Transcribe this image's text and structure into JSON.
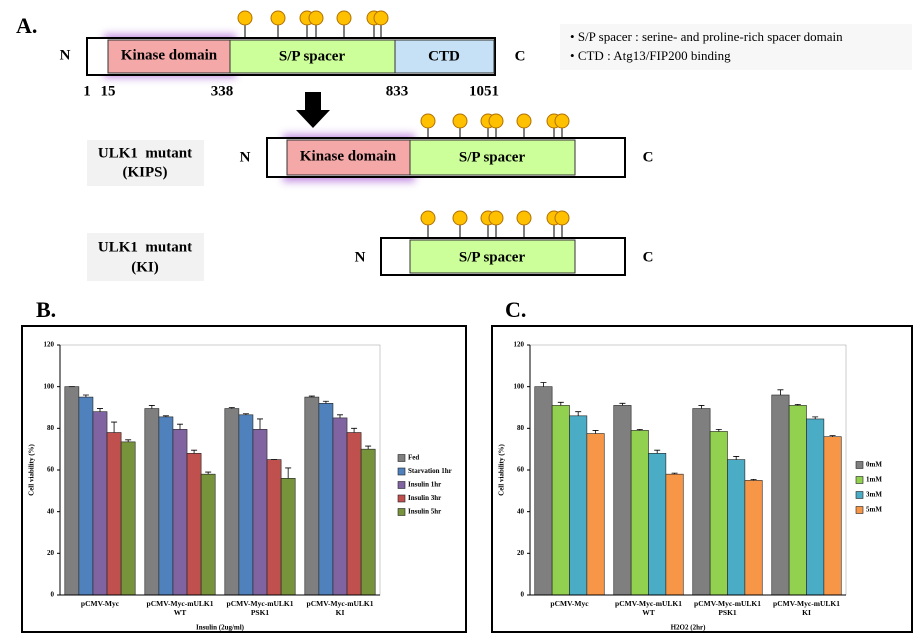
{
  "diagram": {
    "panel_label": "A.",
    "full": {
      "n": "N",
      "c": "C",
      "kinase": "Kinase domain",
      "spacer": "S/P spacer",
      "ctd": "CTD",
      "positions": [
        1,
        15,
        338,
        833,
        1051
      ]
    },
    "notes": [
      "S/P spacer : serine- and proline-rich spacer domain",
      "CTD : Atg13/FIP200 binding"
    ],
    "kips": {
      "label": [
        "ULK1  mutant",
        "(KIPS)"
      ],
      "n": "N",
      "c": "C",
      "kinase": "Kinase domain",
      "spacer": "S/P spacer"
    },
    "ki": {
      "label": [
        "ULK1  mutant",
        "(KI)"
      ],
      "n": "N",
      "c": "C",
      "spacer": "S/P spacer"
    }
  },
  "chart_data": [
    {
      "type": "bar",
      "panel_label": "B.",
      "xlabel": "Insulin (2ug/ml)",
      "ylabel": "Cell viability (%)",
      "categories": [
        "pCMV-Myc",
        "pCMV-Myc-mULK1 WT",
        "pCMV-Myc-mULK1 PSK1",
        "pCMV-Myc-mULK1 KI"
      ],
      "series": [
        {
          "name": "Fed",
          "color": "#7f7f7f",
          "values": [
            100,
            89.5,
            89.5,
            95
          ],
          "errors": [
            0,
            1.5,
            0.5,
            0.5
          ]
        },
        {
          "name": "Starvation 1hr",
          "color": "#4f81bd",
          "values": [
            95,
            85.5,
            86.5,
            92
          ],
          "errors": [
            1,
            0.5,
            0.5,
            1
          ]
        },
        {
          "name": "Insulin 1hr",
          "color": "#8064a2",
          "values": [
            88,
            79.5,
            79.5,
            85
          ],
          "errors": [
            1.5,
            2.5,
            5,
            1.5
          ]
        },
        {
          "name": "Insulin 3hr",
          "color": "#c0504d",
          "values": [
            78,
            68,
            65,
            78
          ],
          "errors": [
            5,
            1.5,
            0,
            2
          ]
        },
        {
          "name": "Insulin 5hr",
          "color": "#77933c",
          "values": [
            73.5,
            58,
            56,
            70
          ],
          "errors": [
            1,
            1,
            5,
            1.5
          ]
        }
      ],
      "ylim": [
        0,
        120
      ],
      "yticks": [
        0,
        20,
        40,
        60,
        80,
        100,
        120
      ],
      "legend": "right"
    },
    {
      "type": "bar",
      "panel_label": "C.",
      "xlabel": "H2O2 (2hr)",
      "ylabel": "Cell viability (%)",
      "categories": [
        "pCMV-Myc",
        "pCMV-Myc-mULK1 WT",
        "pCMV-Myc-mULK1 PSK1",
        "pCMV-Myc-mULK1 KI"
      ],
      "series": [
        {
          "name": "0mM",
          "color": "#7f7f7f",
          "values": [
            100,
            91,
            89.5,
            96
          ],
          "errors": [
            2,
            1,
            1.5,
            2.5
          ]
        },
        {
          "name": "1mM",
          "color": "#92d050",
          "values": [
            91,
            79,
            78.5,
            91
          ],
          "errors": [
            1.5,
            0.5,
            1,
            0.5
          ]
        },
        {
          "name": "3mM",
          "color": "#4bacc6",
          "values": [
            86,
            68,
            65,
            84.5
          ],
          "errors": [
            2,
            1.5,
            1.5,
            1
          ]
        },
        {
          "name": "5mM",
          "color": "#f79646",
          "values": [
            77.5,
            58,
            55,
            76
          ],
          "errors": [
            1.5,
            0.5,
            0.5,
            0.5
          ]
        }
      ],
      "ylim": [
        0,
        120
      ],
      "yticks": [
        0,
        20,
        40,
        60,
        80,
        100,
        120
      ],
      "legend": "right"
    }
  ]
}
